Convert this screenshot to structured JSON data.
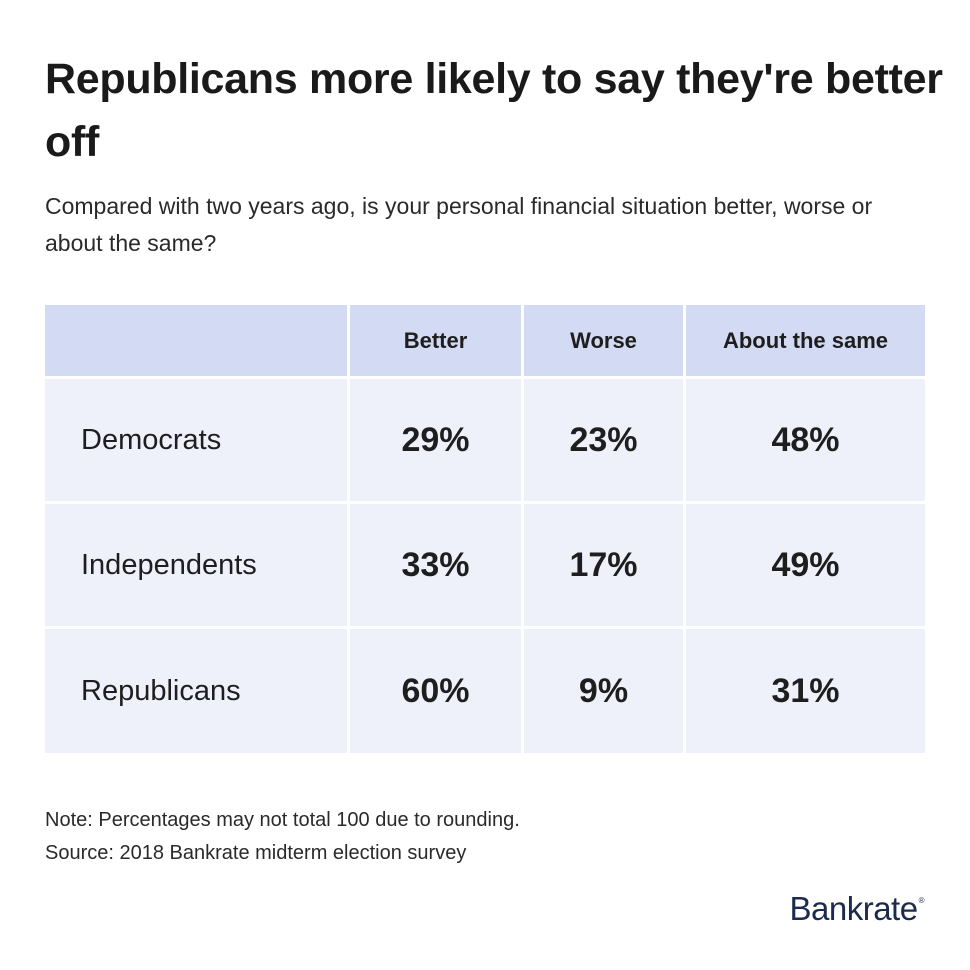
{
  "title": "Republicans more likely to say they're better off",
  "subtitle": "Compared with two years ago, is your personal financial situation better, worse or about the same?",
  "chart_data": {
    "type": "table",
    "columns": [
      "",
      "Better",
      "Worse",
      "About the same"
    ],
    "rows": [
      {
        "label": "Democrats",
        "values": [
          "29%",
          "23%",
          "48%"
        ]
      },
      {
        "label": "Independents",
        "values": [
          "33%",
          "17%",
          "49%"
        ]
      },
      {
        "label": "Republicans",
        "values": [
          "60%",
          "9%",
          "31%"
        ]
      }
    ]
  },
  "notes": {
    "note": "Note: Percentages may not total 100 due to rounding.",
    "source": "Source: 2018 Bankrate midterm election survey"
  },
  "brand": {
    "name": "Bankrate",
    "mark": "®",
    "color": "#1b2a4e"
  },
  "colors": {
    "header_bg": "#d3daf3",
    "cell_bg": "#eef0fa"
  }
}
